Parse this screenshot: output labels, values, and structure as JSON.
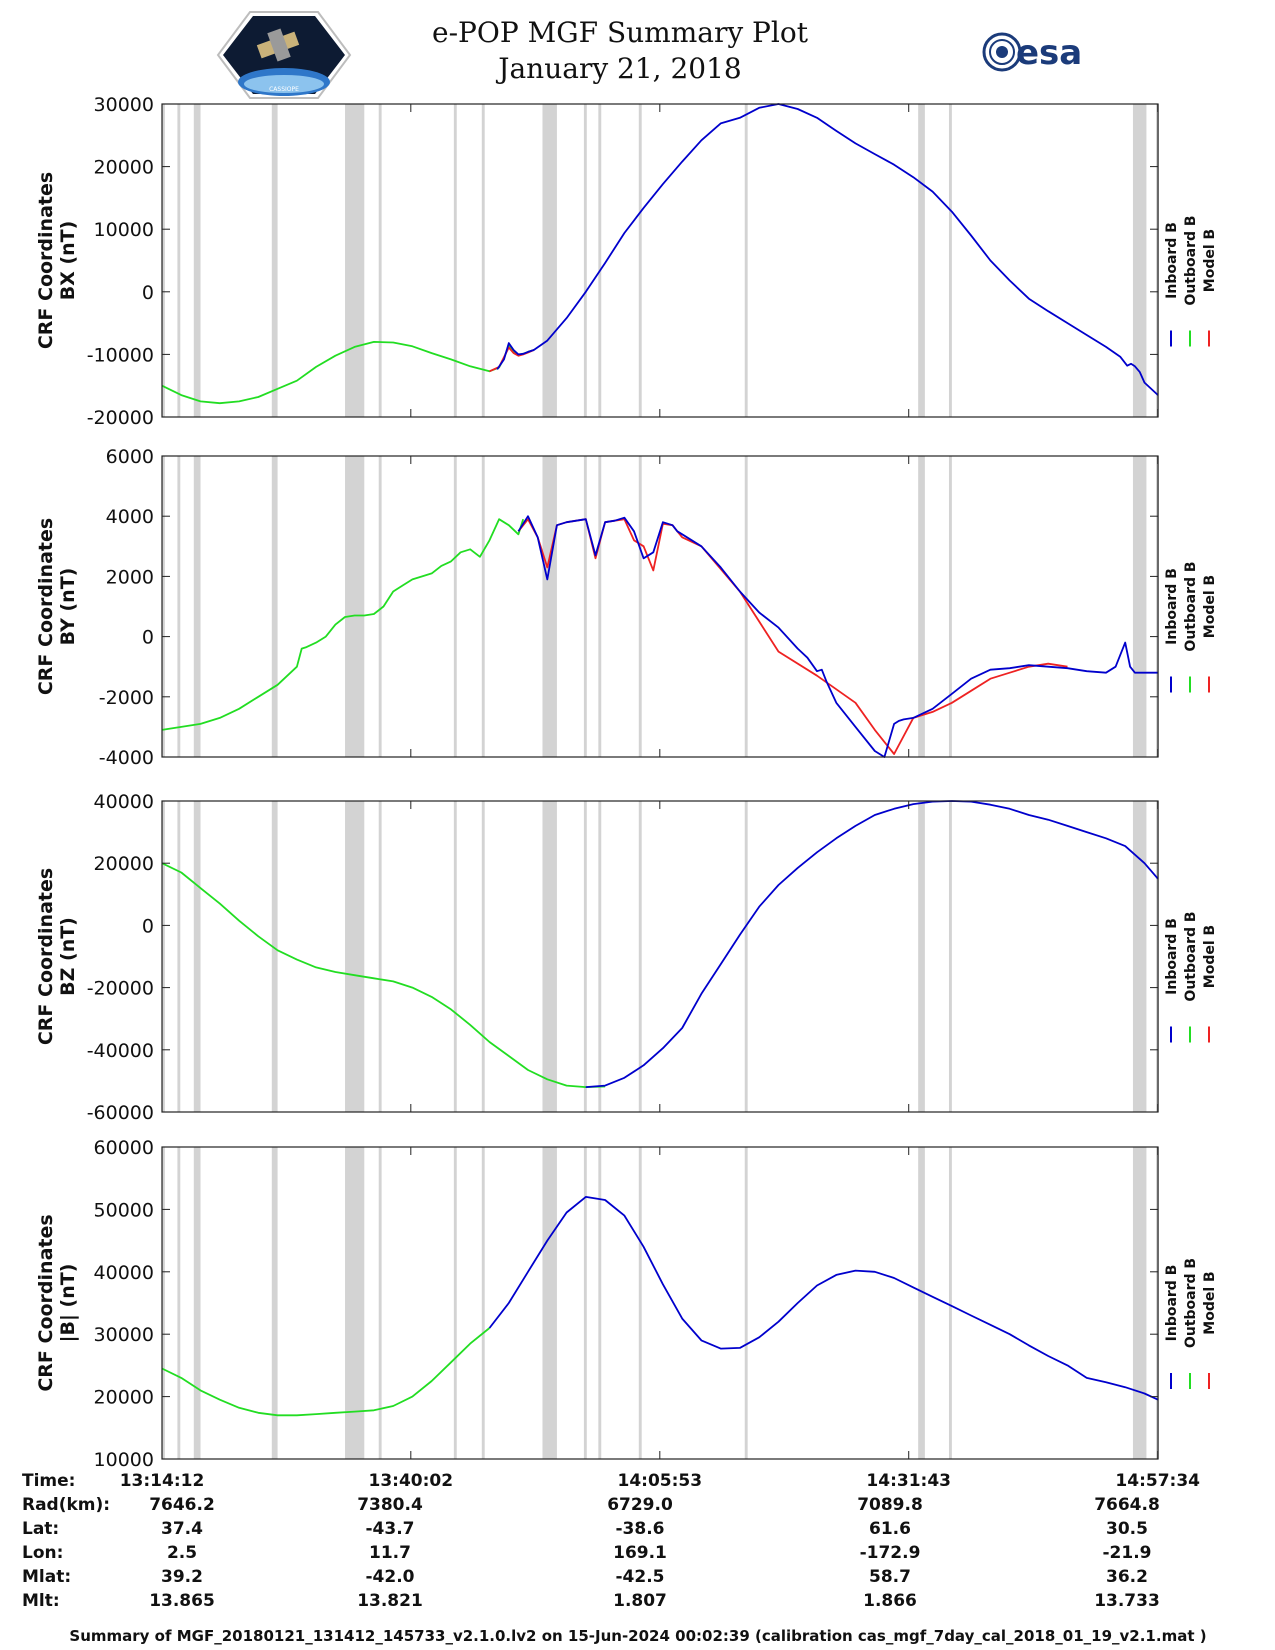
{
  "title": "e-POP MGF Summary Plot",
  "date": "January 21, 2018",
  "logo_left_text": "CASSIOPE",
  "logo_right_text": "esa",
  "legend": [
    "Inboard B",
    "Outboard B",
    "Model B"
  ],
  "colors": {
    "inboard": "#0000cc",
    "outboard": "#22dd22",
    "model": "#ee2222",
    "gap": "#d3d3d3",
    "gap_line": "#e0e0e0"
  },
  "gap_intervals_min": [
    [
      0.0,
      0.3
    ],
    [
      1.6,
      1.9
    ],
    [
      3.3,
      4.0
    ],
    [
      11.4,
      12.0
    ],
    [
      19.0,
      21.0
    ],
    [
      22.5,
      22.8
    ],
    [
      30.3,
      30.6
    ],
    [
      33.2,
      33.5
    ],
    [
      39.5,
      41.0
    ],
    [
      43.8,
      44.1
    ],
    [
      45.3,
      45.6
    ],
    [
      49.5,
      49.8
    ],
    [
      60.5,
      60.8
    ],
    [
      78.5,
      79.2
    ],
    [
      81.7,
      82.0
    ],
    [
      100.8,
      102.2
    ],
    [
      103.2,
      103.5
    ]
  ],
  "chart_data": [
    {
      "type": "line",
      "ylabel": "CRF Coordinates",
      "ylabel2": "BX (nT)",
      "ylim": [
        -20000,
        30000
      ],
      "yticks": [
        "30000",
        "20000",
        "10000",
        "0",
        "-10000",
        "-20000"
      ],
      "xlim": [
        0,
        103.4
      ],
      "series": [
        {
          "name": "Outboard B",
          "x": [
            0,
            2,
            4,
            6,
            8,
            10,
            12,
            14,
            16,
            18,
            20,
            22,
            24,
            26,
            28,
            30,
            32,
            34,
            35,
            35.5,
            36,
            36.5,
            37,
            37.5,
            38,
            38.6
          ],
          "y": [
            -15000,
            -16500,
            -17500,
            -17800,
            -17500,
            -16800,
            -15500,
            -14200,
            -12000,
            -10200,
            -8800,
            -8000,
            -8100,
            -8700,
            -9800,
            -10800,
            -11900,
            -12700,
            -12100,
            -10600,
            -8500,
            -9600,
            -10100,
            -9900,
            -9600,
            -9300
          ]
        },
        {
          "name": "Model B",
          "x": [
            34,
            35,
            36,
            36.5,
            37,
            37.5,
            38,
            38.6
          ],
          "y": [
            -12700,
            -12000,
            -8900,
            -9800,
            -10200,
            -10000,
            -9700,
            -9300
          ]
        },
        {
          "name": "Inboard B",
          "x": [
            34.8,
            35.5,
            36,
            36.5,
            37,
            37.5,
            38,
            38.6,
            40,
            42,
            44,
            46,
            48,
            50,
            52,
            54,
            56,
            58,
            60,
            62,
            64,
            66,
            68,
            70,
            72,
            74,
            76,
            78,
            80,
            82,
            84,
            86,
            88,
            90,
            92,
            94,
            96,
            98,
            99.5,
            100.2,
            100.6,
            101,
            101.5,
            102,
            103.4
          ],
          "y": [
            -12400,
            -10800,
            -8200,
            -9300,
            -10000,
            -9900,
            -9600,
            -9300,
            -7800,
            -4200,
            0,
            4600,
            9400,
            13400,
            17200,
            20800,
            24200,
            26900,
            27800,
            29400,
            30000,
            29200,
            27800,
            25700,
            23700,
            22000,
            20300,
            18300,
            16000,
            12800,
            9000,
            5000,
            1800,
            -1100,
            -3100,
            -5000,
            -6900,
            -8800,
            -10400,
            -11800,
            -11500,
            -11900,
            -12800,
            -14500,
            -16500
          ]
        }
      ]
    },
    {
      "type": "line",
      "ylabel": "CRF Coordinates",
      "ylabel2": "BY (nT)",
      "ylim": [
        -4000,
        6000
      ],
      "yticks": [
        "6000",
        "4000",
        "2000",
        "0",
        "-2000",
        "-4000"
      ],
      "xlim": [
        0,
        103.4
      ],
      "series": [
        {
          "name": "Outboard B",
          "x": [
            0,
            2,
            4,
            6,
            8,
            10,
            12,
            14,
            14.5,
            15,
            16,
            17,
            18,
            19,
            20,
            21,
            22,
            23,
            24,
            25,
            26,
            27,
            28,
            29,
            30,
            31,
            32,
            33,
            34,
            35,
            36,
            37,
            37.5
          ],
          "y": [
            -3100,
            -3000,
            -2900,
            -2700,
            -2400,
            -2000,
            -1600,
            -1000,
            -400,
            -350,
            -200,
            0,
            400,
            650,
            700,
            700,
            750,
            1000,
            1500,
            1700,
            1900,
            2000,
            2100,
            2350,
            2500,
            2800,
            2900,
            2650,
            3200,
            3900,
            3700,
            3400,
            3900
          ]
        },
        {
          "name": "Model B",
          "x": [
            37,
            38,
            39,
            40,
            41,
            42,
            43,
            44,
            45,
            46,
            47,
            48,
            49,
            50,
            51,
            52,
            53,
            53.5,
            54,
            56,
            60,
            64,
            68,
            72,
            74,
            76,
            78,
            80,
            82,
            84,
            86,
            88,
            90,
            92,
            94
          ],
          "y": [
            3500,
            3900,
            3300,
            2300,
            3700,
            3800,
            3850,
            3900,
            2600,
            3800,
            3850,
            3900,
            3200,
            3000,
            2200,
            3750,
            3700,
            3500,
            3300,
            3000,
            1500,
            -500,
            -1300,
            -2200,
            -3100,
            -3900,
            -2700,
            -2500,
            -2200,
            -1800,
            -1400,
            -1200,
            -1000,
            -900,
            -1000
          ]
        },
        {
          "name": "Inboard B",
          "x": [
            37,
            38,
            39,
            40,
            41,
            42,
            43,
            44,
            45,
            46,
            47,
            48,
            49,
            50,
            51,
            52,
            53,
            53.5,
            54,
            56,
            58,
            60,
            62,
            64,
            66,
            67,
            68,
            68.5,
            69,
            70,
            72,
            74,
            75,
            76,
            76.5,
            77,
            78,
            80,
            82,
            84,
            86,
            88,
            90,
            92,
            94,
            96,
            98,
            99,
            100,
            100.5,
            101,
            102,
            103.4
          ],
          "y": [
            3500,
            4000,
            3300,
            1900,
            3700,
            3800,
            3850,
            3900,
            2700,
            3800,
            3850,
            3950,
            3500,
            2600,
            2800,
            3800,
            3700,
            3500,
            3400,
            3000,
            2300,
            1500,
            800,
            300,
            -400,
            -700,
            -1150,
            -1100,
            -1500,
            -2200,
            -3000,
            -3800,
            -4000,
            -2900,
            -2800,
            -2750,
            -2700,
            -2400,
            -1900,
            -1400,
            -1100,
            -1050,
            -950,
            -1000,
            -1050,
            -1150,
            -1200,
            -1000,
            -200,
            -1000,
            -1200,
            -1200,
            -1200
          ]
        }
      ]
    },
    {
      "type": "line",
      "ylabel": "CRF Coordinates",
      "ylabel2": "BZ (nT)",
      "ylim": [
        -60000,
        40000
      ],
      "yticks": [
        "40000",
        "20000",
        "0",
        "-20000",
        "-40000",
        "-60000"
      ],
      "xlim": [
        0,
        103.4
      ],
      "series": [
        {
          "name": "Outboard B",
          "x": [
            0,
            2,
            4,
            6,
            8,
            10,
            12,
            14,
            16,
            18,
            20,
            22,
            24,
            26,
            28,
            30,
            32,
            34,
            36,
            38,
            40,
            42,
            44,
            46
          ],
          "y": [
            20000,
            17000,
            12000,
            7000,
            1500,
            -3500,
            -8000,
            -11000,
            -13500,
            -15000,
            -16000,
            -17000,
            -18000,
            -20000,
            -23000,
            -27000,
            -32000,
            -37500,
            -42000,
            -46500,
            -49500,
            -51500,
            -52000,
            -51800
          ]
        },
        {
          "name": "Inboard B",
          "x": [
            44,
            46,
            48,
            50,
            52,
            54,
            56,
            58,
            60,
            62,
            64,
            66,
            68,
            70,
            72,
            74,
            76,
            78,
            80,
            82,
            84,
            86,
            88,
            90,
            92,
            94,
            96,
            98,
            100,
            102,
            103.4
          ],
          "y": [
            -52000,
            -51500,
            -49000,
            -45000,
            -39500,
            -33000,
            -22000,
            -12500,
            -3000,
            6000,
            13000,
            18500,
            23500,
            28000,
            32000,
            35500,
            37500,
            39000,
            39800,
            40000,
            39800,
            38800,
            37500,
            35500,
            34000,
            32000,
            30000,
            28000,
            25500,
            20000,
            15000
          ]
        }
      ]
    },
    {
      "type": "line",
      "ylabel": "CRF Coordinates",
      "ylabel2": "|B| (nT)",
      "ylim": [
        10000,
        60000
      ],
      "yticks": [
        "60000",
        "50000",
        "40000",
        "30000",
        "20000",
        "10000"
      ],
      "xlim": [
        0,
        103.4
      ],
      "series": [
        {
          "name": "Outboard B",
          "x": [
            0,
            2,
            4,
            6,
            8,
            10,
            12,
            14,
            16,
            18,
            20,
            22,
            24,
            26,
            28,
            30,
            32,
            34
          ],
          "y": [
            24500,
            23000,
            21000,
            19500,
            18200,
            17400,
            17000,
            17000,
            17200,
            17400,
            17600,
            17800,
            18500,
            20000,
            22500,
            25500,
            28500,
            31000
          ]
        },
        {
          "name": "Inboard B",
          "x": [
            34,
            36,
            38,
            40,
            42,
            44,
            46,
            48,
            50,
            52,
            54,
            56,
            58,
            60,
            62,
            64,
            66,
            68,
            70,
            72,
            74,
            76,
            78,
            80,
            82,
            84,
            86,
            88,
            90,
            92,
            94,
            96,
            98,
            100,
            102,
            103.4
          ],
          "y": [
            31000,
            35000,
            40000,
            45000,
            49500,
            52000,
            51500,
            49000,
            44000,
            38000,
            32500,
            29000,
            27700,
            27800,
            29500,
            32000,
            35000,
            37800,
            39500,
            40200,
            40000,
            39000,
            37500,
            36000,
            34500,
            33000,
            31500,
            30000,
            28200,
            26500,
            25000,
            23000,
            22300,
            21500,
            20500,
            19500
          ]
        }
      ]
    }
  ],
  "x_axis": {
    "tick_times": [
      "13:14:12",
      "13:40:02",
      "14:05:53",
      "14:31:43",
      "14:57:34"
    ],
    "tick_minutes": [
      0,
      25.83,
      51.68,
      77.52,
      103.37
    ]
  },
  "info_rows": [
    {
      "label": "Time:",
      "values": [
        "13:14:12",
        "13:40:02",
        "14:05:53",
        "14:31:43",
        "14:57:34"
      ]
    },
    {
      "label": "Rad(km):",
      "values": [
        "7646.2",
        "7380.4",
        "6729.0",
        "7089.8",
        "7664.8"
      ]
    },
    {
      "label": "Lat:",
      "values": [
        "37.4",
        "-43.7",
        "-38.6",
        "61.6",
        "30.5"
      ]
    },
    {
      "label": "Lon:",
      "values": [
        "2.5",
        "11.7",
        "169.1",
        "-172.9",
        "-21.9"
      ]
    },
    {
      "label": "Mlat:",
      "values": [
        "39.2",
        "-42.0",
        "-42.5",
        "58.7",
        "36.2"
      ]
    },
    {
      "label": "Mlt:",
      "values": [
        "13.865",
        "13.821",
        "1.807",
        "1.866",
        "13.733"
      ]
    }
  ],
  "footer": "Summary of MGF_20180121_131412_145733_v2.1.0.lv2 on 15-Jun-2024 00:02:39 (calibration cas_mgf_7day_cal_2018_01_19_v2.1.mat )"
}
